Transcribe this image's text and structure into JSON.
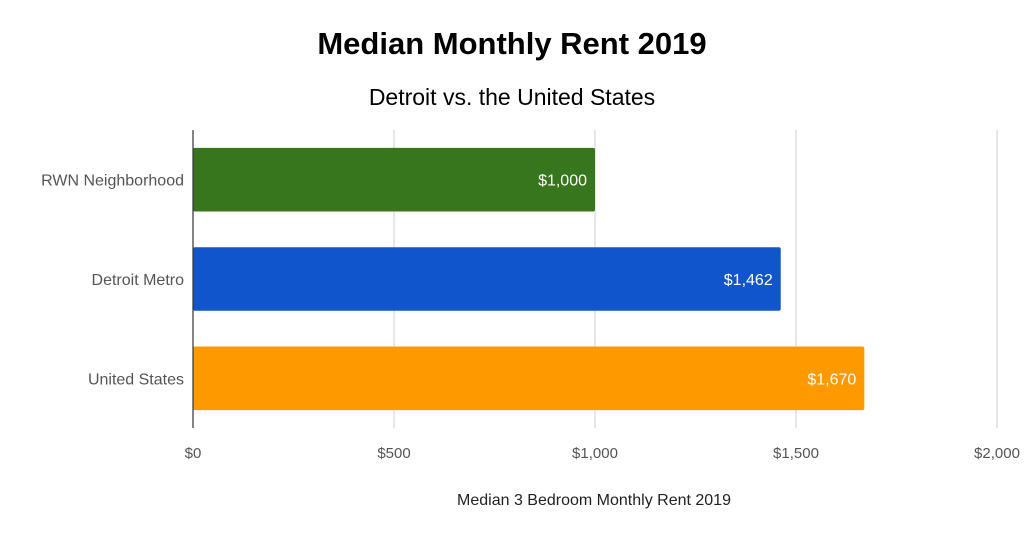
{
  "chart_data": {
    "type": "bar",
    "orientation": "horizontal",
    "title": "Median Monthly Rent 2019",
    "subtitle": "Detroit vs. the United States",
    "xlabel": "Median 3 Bedroom Monthly Rent 2019",
    "ylabel": "",
    "xlim": [
      0,
      2000
    ],
    "x_ticks": [
      0,
      500,
      1000,
      1500,
      2000
    ],
    "x_tick_labels": [
      "$0",
      "$500",
      "$1,000",
      "$1,500",
      "$2,000"
    ],
    "grid": true,
    "categories": [
      "RWN Neighborhood",
      "Detroit Metro",
      "United States"
    ],
    "values": [
      1000,
      1462,
      1670
    ],
    "data_labels": [
      "$1,000",
      "$1,462",
      "$1,670"
    ],
    "colors": [
      "#38761d",
      "#1155cc",
      "#ff9900"
    ]
  }
}
